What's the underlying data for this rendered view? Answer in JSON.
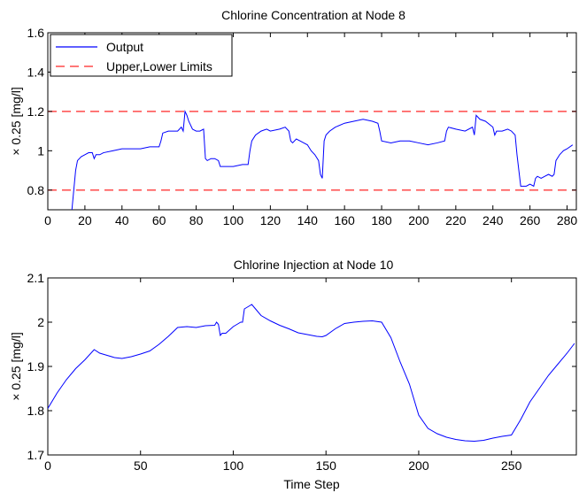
{
  "chart_data": [
    {
      "type": "line",
      "title": "Chlorine Concentration at Node 8",
      "xlabel": "",
      "ylabel": "× 0.25 [mg/l]",
      "xlim": [
        0,
        285
      ],
      "ylim": [
        0.7,
        1.6
      ],
      "xticks": [
        0,
        20,
        40,
        60,
        80,
        100,
        120,
        140,
        160,
        180,
        200,
        220,
        240,
        260,
        280
      ],
      "yticks": [
        0.8,
        1,
        1.2,
        1.4,
        1.6
      ],
      "xtick_labels": [
        "0",
        "20",
        "40",
        "60",
        "80",
        "100",
        "120",
        "140",
        "160",
        "180",
        "200",
        "220",
        "240",
        "260",
        "280"
      ],
      "ytick_labels": [
        "0.8",
        "1",
        "1.2",
        "1.4",
        "1.6"
      ],
      "legend_position": "top-left",
      "grid": false,
      "series": [
        {
          "name": "Output",
          "color": "#0000ff",
          "style": "solid",
          "x": [
            13,
            14,
            15,
            16,
            18,
            20,
            22,
            24,
            25,
            26,
            28,
            30,
            35,
            40,
            45,
            50,
            55,
            60,
            61,
            62,
            65,
            68,
            70,
            72,
            73,
            74,
            75,
            76,
            78,
            80,
            82,
            84,
            85,
            86,
            88,
            90,
            92,
            93,
            94,
            96,
            100,
            105,
            108,
            109,
            110,
            112,
            115,
            118,
            120,
            125,
            128,
            130,
            131,
            132,
            134,
            136,
            138,
            140,
            142,
            144,
            146,
            147,
            148,
            149,
            150,
            152,
            155,
            160,
            165,
            170,
            175,
            178,
            179,
            180,
            185,
            190,
            195,
            200,
            205,
            210,
            214,
            215,
            216,
            220,
            225,
            229,
            230,
            231,
            233,
            236,
            240,
            241,
            242,
            245,
            248,
            250,
            252,
            253,
            254,
            255,
            256,
            258,
            260,
            262,
            263,
            264,
            266,
            268,
            270,
            272,
            273,
            274,
            276,
            278,
            280,
            283
          ],
          "y": [
            0.7,
            0.8,
            0.9,
            0.95,
            0.97,
            0.98,
            0.99,
            0.99,
            0.96,
            0.98,
            0.98,
            0.99,
            1.0,
            1.01,
            1.01,
            1.01,
            1.02,
            1.02,
            1.05,
            1.09,
            1.1,
            1.1,
            1.1,
            1.12,
            1.1,
            1.2,
            1.18,
            1.15,
            1.11,
            1.1,
            1.1,
            1.11,
            0.96,
            0.95,
            0.96,
            0.96,
            0.95,
            0.92,
            0.92,
            0.92,
            0.92,
            0.93,
            0.93,
            1.0,
            1.05,
            1.08,
            1.1,
            1.11,
            1.1,
            1.11,
            1.12,
            1.1,
            1.05,
            1.04,
            1.06,
            1.05,
            1.04,
            1.03,
            1.0,
            0.98,
            0.95,
            0.88,
            0.86,
            1.05,
            1.08,
            1.1,
            1.12,
            1.14,
            1.15,
            1.16,
            1.15,
            1.14,
            1.1,
            1.05,
            1.04,
            1.05,
            1.05,
            1.04,
            1.03,
            1.04,
            1.05,
            1.1,
            1.12,
            1.11,
            1.1,
            1.12,
            1.08,
            1.18,
            1.16,
            1.15,
            1.12,
            1.08,
            1.1,
            1.1,
            1.11,
            1.1,
            1.08,
            0.98,
            0.9,
            0.82,
            0.82,
            0.82,
            0.83,
            0.82,
            0.86,
            0.87,
            0.86,
            0.87,
            0.88,
            0.87,
            0.88,
            0.95,
            0.98,
            1.0,
            1.01,
            1.03
          ]
        },
        {
          "name": "Upper,Lower Limits",
          "color": "#ff4a4a",
          "style": "dashed",
          "x": [
            0,
            285
          ],
          "y": [
            1.2,
            1.2
          ]
        },
        {
          "name": "Upper,Lower Limits",
          "color": "#ff4a4a",
          "style": "dashed",
          "x": [
            0,
            285
          ],
          "y": [
            0.8,
            0.8
          ]
        }
      ],
      "legend_entries": [
        "Output",
        "Upper,Lower Limits"
      ]
    },
    {
      "type": "line",
      "title": "Chlorine Injection at Node 10",
      "xlabel": "Time Step",
      "ylabel": "× 0.25 [mg/l]",
      "xlim": [
        0,
        285
      ],
      "ylim": [
        1.7,
        2.1
      ],
      "xticks": [
        0,
        50,
        100,
        150,
        200,
        250
      ],
      "yticks": [
        1.7,
        1.8,
        1.9,
        2,
        2.1
      ],
      "xtick_labels": [
        "0",
        "50",
        "100",
        "150",
        "200",
        "250"
      ],
      "ytick_labels": [
        "1.7",
        "1.8",
        "1.9",
        "2",
        "2.1"
      ],
      "grid": false,
      "series": [
        {
          "color": "#0000ff",
          "style": "solid",
          "x": [
            0,
            5,
            10,
            15,
            20,
            25,
            28,
            32,
            36,
            40,
            45,
            50,
            55,
            60,
            65,
            70,
            75,
            80,
            85,
            90,
            91,
            92,
            93,
            94,
            96,
            100,
            102,
            104,
            105,
            106,
            108,
            110,
            112,
            115,
            120,
            125,
            130,
            135,
            140,
            145,
            148,
            150,
            155,
            160,
            165,
            170,
            175,
            180,
            185,
            190,
            195,
            200,
            205,
            210,
            215,
            220,
            225,
            230,
            235,
            240,
            245,
            250,
            255,
            260,
            265,
            270,
            275,
            280,
            284
          ],
          "y": [
            1.805,
            1.84,
            1.87,
            1.895,
            1.915,
            1.938,
            1.93,
            1.925,
            1.92,
            1.918,
            1.922,
            1.928,
            1.935,
            1.95,
            1.968,
            1.988,
            1.99,
            1.988,
            1.992,
            1.993,
            2.0,
            1.995,
            1.97,
            1.975,
            1.975,
            1.99,
            1.995,
            2.0,
            2.0,
            2.03,
            2.035,
            2.04,
            2.03,
            2.015,
            2.003,
            1.993,
            1.985,
            1.976,
            1.972,
            1.968,
            1.967,
            1.97,
            1.985,
            1.997,
            2.0,
            2.002,
            2.003,
            2.0,
            1.965,
            1.91,
            1.86,
            1.79,
            1.76,
            1.748,
            1.74,
            1.735,
            1.732,
            1.731,
            1.733,
            1.738,
            1.742,
            1.745,
            1.78,
            1.82,
            1.85,
            1.88,
            1.905,
            1.93,
            1.952
          ]
        }
      ]
    }
  ]
}
